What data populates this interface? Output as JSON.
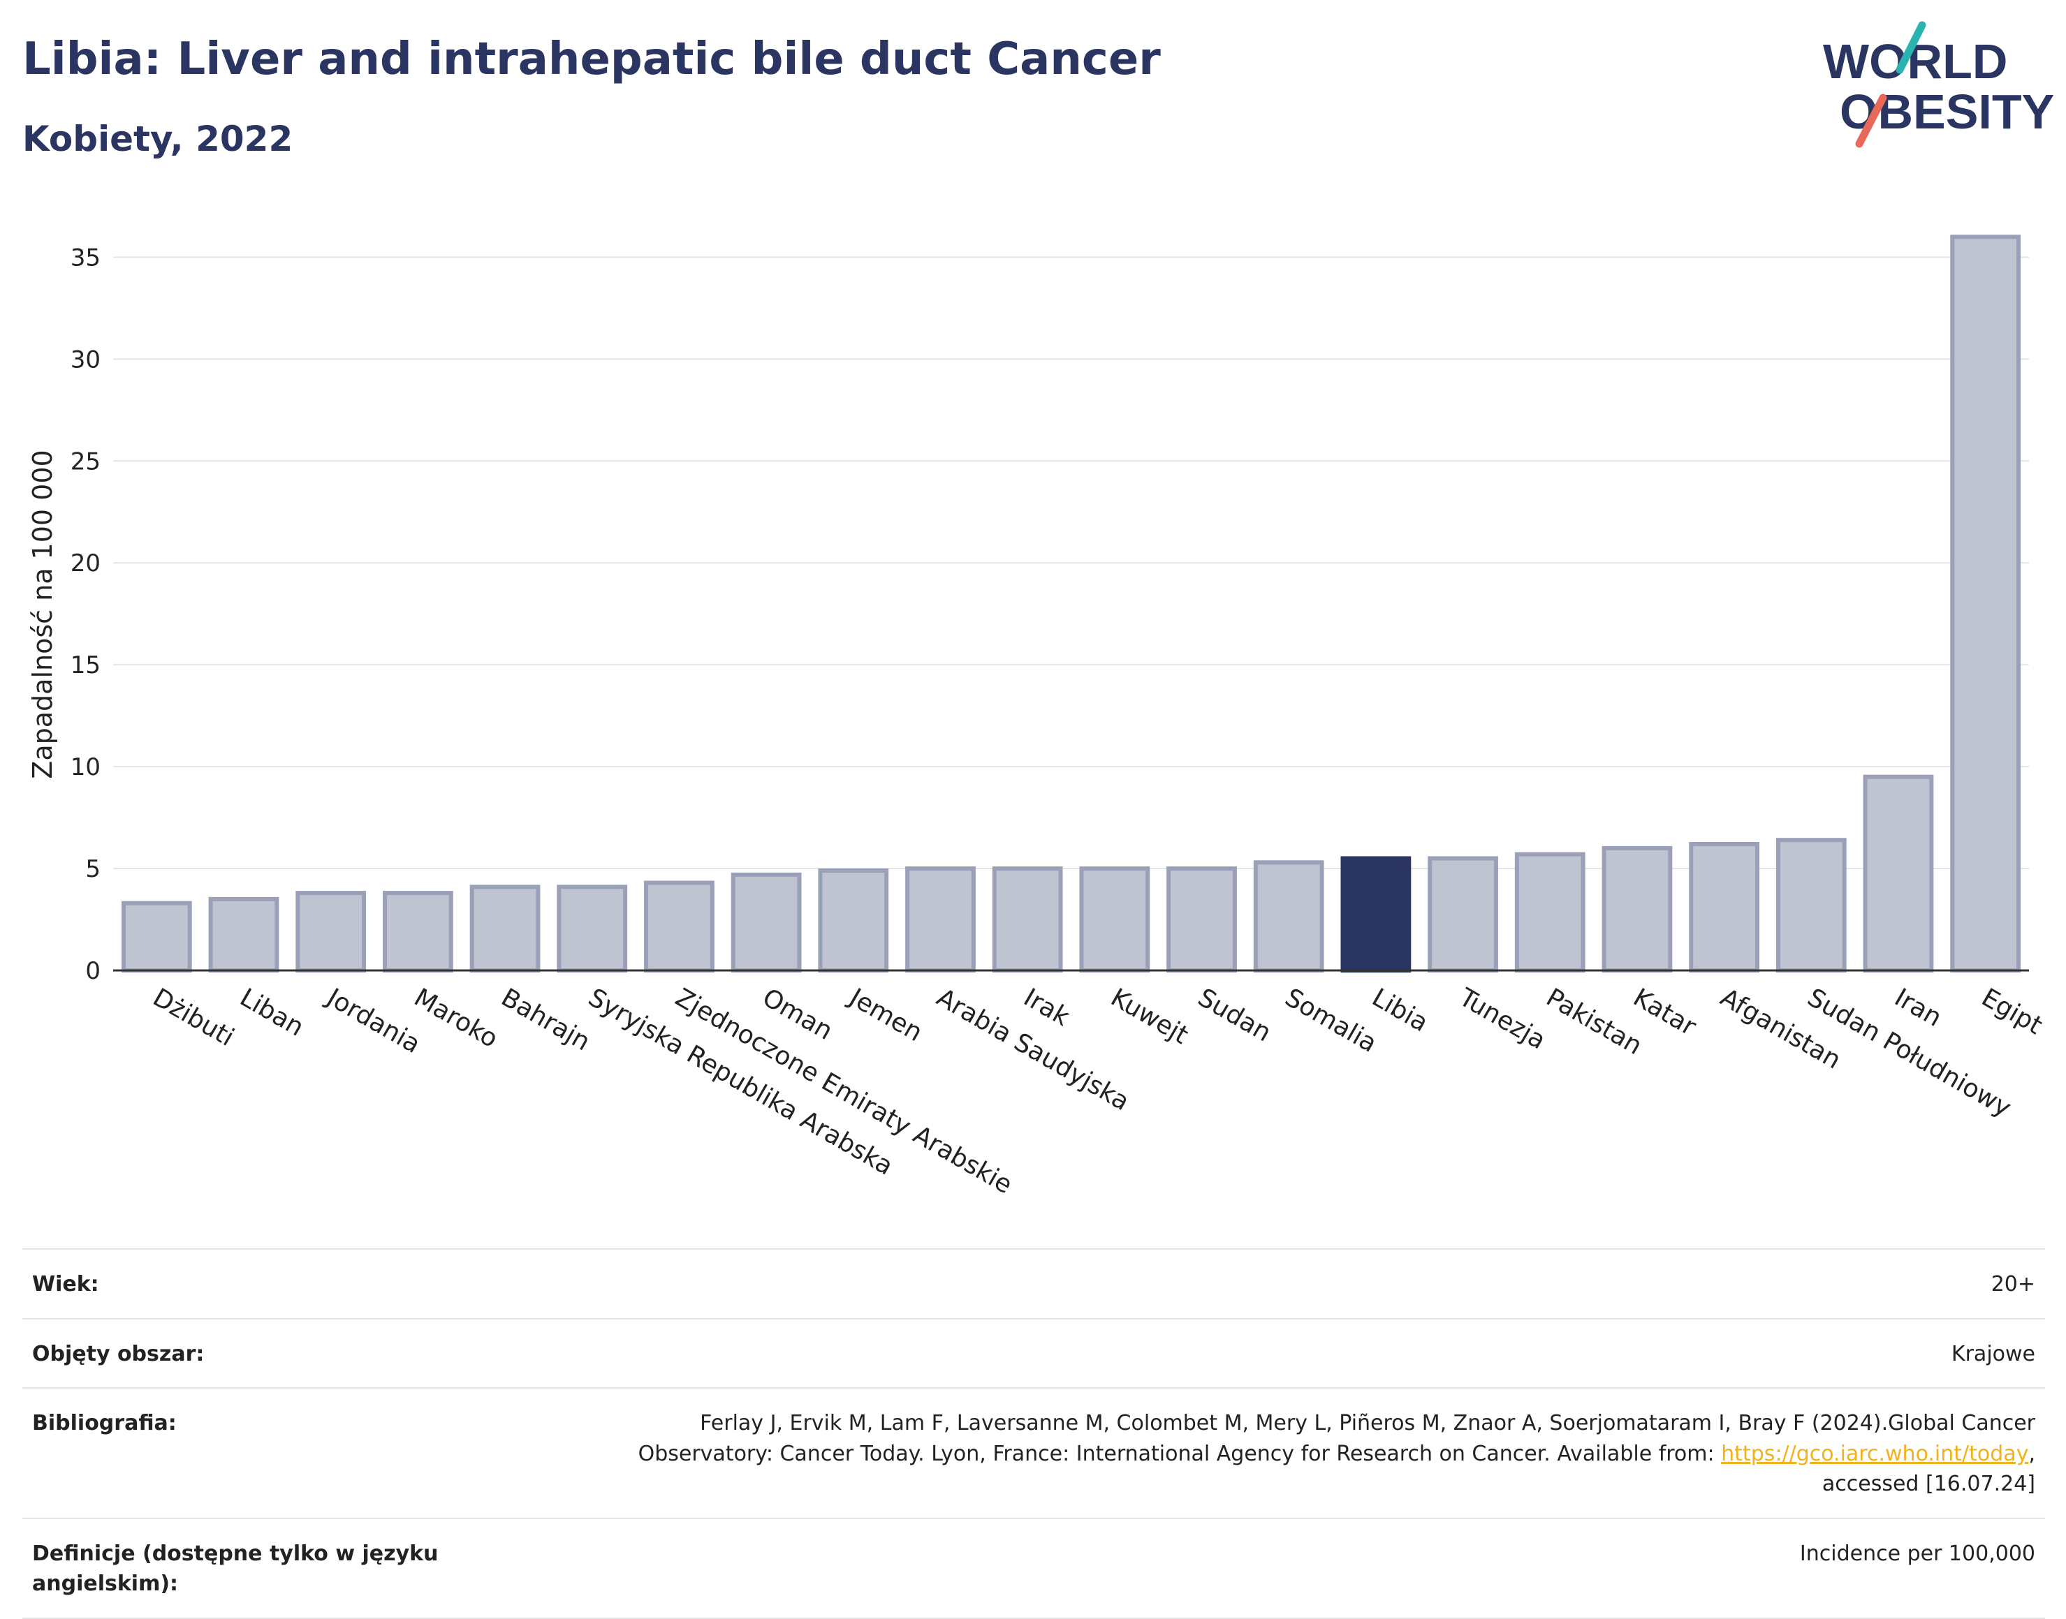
{
  "header": {
    "title": "Libia: Liver and intrahepatic bile duct Cancer",
    "subtitle": "Kobiety, 2022"
  },
  "logo": {
    "line1": "WORLD",
    "line2": "OBESITY",
    "accent1": "#2bb3b1",
    "accent2": "#e8685a",
    "text_color": "#2b3561"
  },
  "colors": {
    "bar": "#c0c3d0",
    "bar_stroke": "#9aa0b8",
    "highlight": "#2b3561",
    "grid": "#e6e6e6",
    "axis": "#333333"
  },
  "chart_data": {
    "type": "bar",
    "ylabel": "Zapadalność na 100 000",
    "ylim": [
      0,
      37
    ],
    "yticks": [
      0,
      5,
      10,
      15,
      20,
      25,
      30,
      35
    ],
    "grid": true,
    "highlight": "Libia",
    "categories": [
      "Dżibuti",
      "Liban",
      "Jordania",
      "Maroko",
      "Bahrajn",
      "Syryjska Republika Arabska",
      "Zjednoczone Emiraty Arabskie",
      "Oman",
      "Jemen",
      "Arabia Saudyjska",
      "Irak",
      "Kuwejt",
      "Sudan",
      "Somalia",
      "Libia",
      "Tunezja",
      "Pakistan",
      "Katar",
      "Afganistan",
      "Sudan Południowy",
      "Iran",
      "Egipt"
    ],
    "values": [
      3.3,
      3.5,
      3.8,
      3.8,
      4.1,
      4.1,
      4.3,
      4.7,
      4.9,
      5.0,
      5.0,
      5.0,
      5.0,
      5.3,
      5.5,
      5.5,
      5.7,
      6.0,
      6.2,
      6.4,
      9.5,
      36.0
    ]
  },
  "meta": [
    {
      "key": "Wiek:",
      "value": "20+"
    },
    {
      "key": "Objęty obszar:",
      "value": "Krajowe"
    },
    {
      "key": "Bibliografia:",
      "value_line1": "Ferlay J, Ervik M, Lam F, Laversanne M, Colombet M, Mery L, Piñeros M, Znaor A, Soerjomataram I, Bray F (2024).Global Cancer",
      "value_line2_pre": "Observatory: Cancer Today. Lyon, France: International Agency for Research on Cancer. Available from: ",
      "link": "https://gco.iarc.who.int/today",
      "value_line2_post": ",",
      "value_line3": "accessed [16.07.24]"
    },
    {
      "key": "Definicje (dostępne tylko w języku angielskim):",
      "value": "Incidence per 100,000"
    }
  ]
}
